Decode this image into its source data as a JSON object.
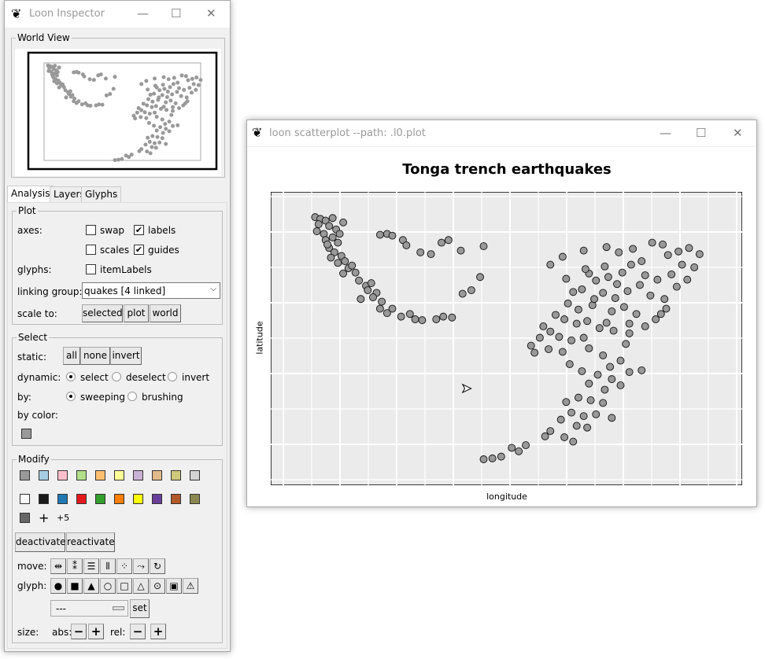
{
  "inspector": {
    "title": "Loon Inspector",
    "world_view_label": "World View",
    "tabs": [
      {
        "label": "Analysis",
        "active": true
      },
      {
        "label": "Layers"
      },
      {
        "label": "Glyphs"
      }
    ],
    "plot": {
      "group_label": "Plot",
      "axes_label": "axes:",
      "swap": "swap",
      "swap_checked": false,
      "labels": "labels",
      "labels_checked": true,
      "scales": "scales",
      "scales_checked": false,
      "guides": "guides",
      "guides_checked": true,
      "glyphs_label": "glyphs:",
      "item_labels": "itemLabels",
      "item_labels_checked": false,
      "linking_group_label": "linking group:",
      "linking_group_value": "quakes  [4 linked]",
      "scale_to_label": "scale to:",
      "scale_buttons": [
        "selected",
        "plot",
        "world"
      ]
    },
    "select": {
      "group_label": "Select",
      "static_label": "static:",
      "static_buttons": [
        "all",
        "none",
        "invert"
      ],
      "dynamic_label": "dynamic:",
      "dynamic_options": [
        "select",
        "deselect",
        "invert"
      ],
      "dynamic_selected": "select",
      "by_label": "by:",
      "by_options": [
        "sweeping",
        "brushing"
      ],
      "by_selected": "sweeping",
      "by_color_label": "by color:",
      "by_color_swatch": "#999999"
    },
    "modify": {
      "group_label": "Modify",
      "colors_row1": [
        "#999999",
        "#a6cee3",
        "#ffc0cb",
        "#b2df8a",
        "#fdbf6f",
        "#ffff99",
        "#cab2d6",
        "#e0ba8a",
        "#cdc97a",
        "#d3d3d3"
      ],
      "colors_row2": [
        "#ffffff",
        "#1a1a1a",
        "#1f78b4",
        "#e31a1c",
        "#33a02c",
        "#ff7f00",
        "#ffff00",
        "#6a3d9a",
        "#b15928",
        "#8b8750"
      ],
      "colors_row3": [
        "#666666"
      ],
      "more_colors": "+5",
      "deactivate": "deactivate",
      "reactivate": "reactivate",
      "move_label": "move:",
      "move_icons": [
        "⇹",
        "⁑",
        "☰",
        "⦀",
        "⁘",
        "⤳",
        "↻"
      ],
      "move_names": [
        "move-valign-icon",
        "move-halign-icon",
        "move-hdist-icon",
        "move-vdist-icon",
        "move-grid-icon",
        "move-jitter-icon",
        "move-reset-icon"
      ],
      "glyph_label": "glyph:",
      "glyph_icons": [
        "●",
        "■",
        "▲",
        "○",
        "□",
        "△",
        "⊙",
        "▣",
        "⚠"
      ],
      "glyph_names": [
        "glyph-circle-icon",
        "glyph-square-icon",
        "glyph-triangle-icon",
        "glyph-ocircle-icon",
        "glyph-osquare-icon",
        "glyph-otriangle-icon",
        "glyph-ccircle-icon",
        "glyph-csquare-icon",
        "glyph-ctriangle-icon"
      ],
      "glyph_select_value": "---",
      "set": "set",
      "size_label": "size:",
      "abs_label": "abs:",
      "rel_label": "rel:",
      "minus": "−",
      "plus": "+"
    }
  },
  "plot_window": {
    "title": "loon scatterplot --path: .l0.plot",
    "accent_point_color": "#999999",
    "chart_data": {
      "type": "scatter",
      "title": "Tonga trench earthquakes",
      "xlabel": "longitude",
      "ylabel": "latitude",
      "xlim": [
        165.67,
        188.13
      ],
      "ylim": [
        -38.59,
        -10.72
      ],
      "grid": true,
      "axis_scales_shown": false,
      "points": [
        [
          166.0,
          -11.0
        ],
        [
          166.3,
          -11.2
        ],
        [
          166.6,
          -11.4
        ],
        [
          166.2,
          -11.8
        ],
        [
          166.8,
          -12.0
        ],
        [
          166.1,
          -12.6
        ],
        [
          166.5,
          -12.9
        ],
        [
          167.2,
          -12.4
        ],
        [
          167.4,
          -12.9
        ],
        [
          167.0,
          -13.3
        ],
        [
          166.6,
          -13.6
        ],
        [
          167.3,
          -13.9
        ],
        [
          166.8,
          -14.5
        ],
        [
          167.1,
          -15.0
        ],
        [
          167.5,
          -15.4
        ],
        [
          166.9,
          -15.6
        ],
        [
          167.3,
          -16.2
        ],
        [
          167.7,
          -16.0
        ],
        [
          167.9,
          -16.8
        ],
        [
          167.6,
          -17.4
        ],
        [
          168.1,
          -16.5
        ],
        [
          168.3,
          -17.3
        ],
        [
          166.7,
          -14.1
        ],
        [
          167.6,
          -11.6
        ],
        [
          167.0,
          -11.1
        ],
        [
          168.5,
          -18.2
        ],
        [
          168.9,
          -18.8
        ],
        [
          169.2,
          -18.5
        ],
        [
          169.0,
          -19.3
        ],
        [
          169.5,
          -19.6
        ],
        [
          168.6,
          -20.3
        ],
        [
          169.3,
          -20.1
        ],
        [
          169.8,
          -20.6
        ],
        [
          169.7,
          -21.4
        ],
        [
          170.1,
          -21.9
        ],
        [
          170.4,
          -21.4
        ],
        [
          170.9,
          -22.3
        ],
        [
          171.4,
          -22.0
        ],
        [
          171.7,
          -22.6
        ],
        [
          172.1,
          -22.7
        ],
        [
          172.9,
          -22.6
        ],
        [
          173.3,
          -22.3
        ],
        [
          173.8,
          -22.4
        ],
        [
          174.4,
          -19.7
        ],
        [
          174.9,
          -19.3
        ],
        [
          175.4,
          -17.8
        ],
        [
          169.7,
          -13.0
        ],
        [
          170.1,
          -12.9
        ],
        [
          170.4,
          -13.1
        ],
        [
          171.0,
          -13.6
        ],
        [
          171.2,
          -14.2
        ],
        [
          172.0,
          -15.0
        ],
        [
          172.6,
          -15.2
        ],
        [
          173.2,
          -13.9
        ],
        [
          173.6,
          -13.6
        ],
        [
          174.3,
          -14.8
        ],
        [
          175.6,
          -14.3
        ],
        [
          179.4,
          -16.4
        ],
        [
          180.1,
          -15.5
        ],
        [
          182.5,
          -16.6
        ],
        [
          180.7,
          -19.5
        ],
        [
          181.3,
          -14.8
        ],
        [
          182.6,
          -14.4
        ],
        [
          183.3,
          -15.0
        ],
        [
          184.1,
          -14.6
        ],
        [
          185.2,
          -13.9
        ],
        [
          185.8,
          -14.1
        ],
        [
          186.1,
          -15.3
        ],
        [
          186.7,
          -14.9
        ],
        [
          187.3,
          -14.5
        ],
        [
          187.9,
          -15.2
        ],
        [
          187.6,
          -16.7
        ],
        [
          186.9,
          -16.4
        ],
        [
          186.3,
          -17.5
        ],
        [
          185.5,
          -18.1
        ],
        [
          184.8,
          -17.6
        ],
        [
          184.0,
          -16.4
        ],
        [
          183.5,
          -17.3
        ],
        [
          182.7,
          -17.8
        ],
        [
          182.0,
          -18.2
        ],
        [
          181.6,
          -17.4
        ],
        [
          181.2,
          -19.2
        ],
        [
          182.4,
          -19.6
        ],
        [
          183.1,
          -20.2
        ],
        [
          183.8,
          -19.4
        ],
        [
          184.5,
          -18.7
        ],
        [
          185.1,
          -19.9
        ],
        [
          185.9,
          -20.3
        ],
        [
          186.6,
          -18.9
        ],
        [
          187.2,
          -18.1
        ],
        [
          180.4,
          -20.8
        ],
        [
          181.0,
          -21.5
        ],
        [
          181.8,
          -21.0
        ],
        [
          182.9,
          -21.7
        ],
        [
          183.6,
          -21.2
        ],
        [
          184.3,
          -22.0
        ],
        [
          184.8,
          -23.4
        ],
        [
          185.4,
          -22.6
        ],
        [
          186.0,
          -21.4
        ],
        [
          180.2,
          -22.6
        ],
        [
          180.9,
          -23.1
        ],
        [
          181.5,
          -22.8
        ],
        [
          182.2,
          -23.6
        ],
        [
          183.0,
          -23.9
        ],
        [
          183.9,
          -24.2
        ],
        [
          179.0,
          -23.4
        ],
        [
          179.4,
          -24.0
        ],
        [
          178.8,
          -24.7
        ],
        [
          179.9,
          -24.6
        ],
        [
          180.6,
          -25.0
        ],
        [
          178.3,
          -25.6
        ],
        [
          178.5,
          -26.4
        ],
        [
          179.3,
          -26.0
        ],
        [
          180.1,
          -26.3
        ],
        [
          181.3,
          -24.7
        ],
        [
          181.6,
          -25.9
        ],
        [
          182.4,
          -26.7
        ],
        [
          183.7,
          -25.4
        ],
        [
          182.8,
          -28.0
        ],
        [
          183.4,
          -27.3
        ],
        [
          183.9,
          -28.6
        ],
        [
          182.1,
          -28.9
        ],
        [
          181.6,
          -29.9
        ],
        [
          182.5,
          -30.6
        ],
        [
          183.4,
          -30.1
        ],
        [
          184.6,
          -28.4
        ],
        [
          181.0,
          -31.5
        ],
        [
          181.7,
          -31.8
        ],
        [
          182.4,
          -32.1
        ],
        [
          180.3,
          -32.0
        ],
        [
          180.6,
          -33.2
        ],
        [
          181.3,
          -33.6
        ],
        [
          182.0,
          -33.4
        ],
        [
          180.0,
          -34.0
        ],
        [
          180.9,
          -34.7
        ],
        [
          182.9,
          -33.8
        ],
        [
          181.5,
          -34.9
        ],
        [
          179.4,
          -35.3
        ],
        [
          180.2,
          -36.0
        ],
        [
          180.7,
          -36.5
        ],
        [
          179.1,
          -35.9
        ],
        [
          178.0,
          -36.9
        ],
        [
          177.2,
          -37.2
        ],
        [
          177.6,
          -37.6
        ],
        [
          176.6,
          -38.2
        ],
        [
          176.1,
          -38.4
        ],
        [
          175.6,
          -38.5
        ],
        [
          182.6,
          -23.0
        ],
        [
          183.2,
          -18.6
        ],
        [
          184.6,
          -16.0
        ],
        [
          181.4,
          -16.9
        ],
        [
          180.3,
          -18.0
        ],
        [
          181.9,
          -20.3
        ],
        [
          183.9,
          -23.1
        ],
        [
          185.7,
          -22.0
        ],
        [
          179.7,
          -22.1
        ],
        [
          180.5,
          -27.7
        ],
        [
          181.2,
          -28.5
        ],
        [
          182.9,
          -29.4
        ]
      ]
    }
  }
}
